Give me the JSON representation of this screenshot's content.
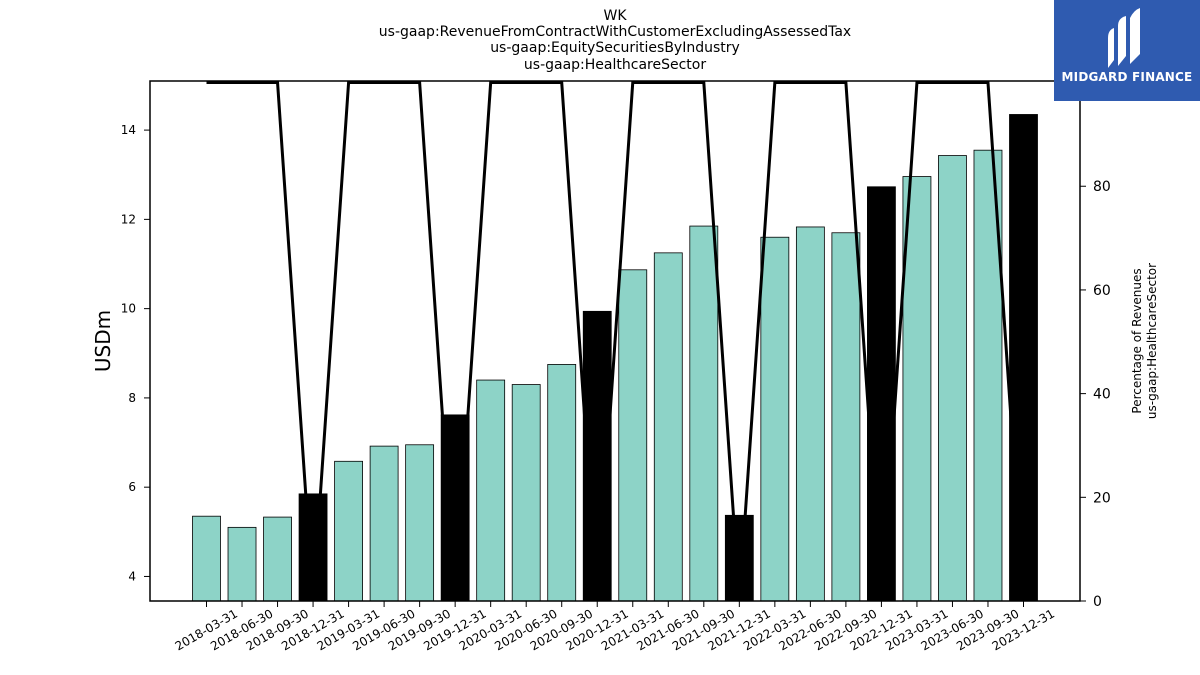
{
  "titles": [
    "WK",
    "us-gaap:RevenueFromContractWithCustomerExcludingAssessedTax",
    "us-gaap:EquitySecuritiesByIndustry",
    "us-gaap:HealthcareSector"
  ],
  "logo": {
    "text": "MIDGARD FINANCE",
    "background": "#2f5bb0"
  },
  "chart_data": {
    "type": "bar",
    "categories": [
      "2018-03-31",
      "2018-06-30",
      "2018-09-30",
      "2018-12-31",
      "2019-03-31",
      "2019-06-30",
      "2019-09-30",
      "2019-12-31",
      "2020-03-31",
      "2020-06-30",
      "2020-09-30",
      "2020-12-31",
      "2021-03-31",
      "2021-06-30",
      "2021-09-30",
      "2021-12-31",
      "2022-03-31",
      "2022-06-30",
      "2022-09-30",
      "2022-12-31",
      "2023-03-31",
      "2023-06-30",
      "2023-09-30",
      "2023-12-31"
    ],
    "series": [
      {
        "type": "bar",
        "axis": "left",
        "values": [
          5.35,
          5.1,
          5.33,
          5.85,
          6.58,
          6.92,
          6.95,
          7.62,
          8.4,
          8.3,
          8.75,
          9.94,
          10.87,
          11.25,
          11.85,
          5.37,
          11.6,
          11.83,
          11.7,
          12.73,
          12.96,
          13.43,
          13.55,
          14.35
        ],
        "colors": [
          "#8dd3c7",
          "#8dd3c7",
          "#8dd3c7",
          "#000000",
          "#8dd3c7",
          "#8dd3c7",
          "#8dd3c7",
          "#000000",
          "#8dd3c7",
          "#8dd3c7",
          "#8dd3c7",
          "#000000",
          "#8dd3c7",
          "#8dd3c7",
          "#8dd3c7",
          "#000000",
          "#8dd3c7",
          "#8dd3c7",
          "#8dd3c7",
          "#000000",
          "#8dd3c7",
          "#8dd3c7",
          "#8dd3c7",
          "#000000"
        ]
      },
      {
        "type": "line",
        "axis": "right",
        "color": "#000000",
        "values": [
          100,
          100,
          100,
          0,
          100,
          100,
          100,
          0,
          100,
          100,
          100,
          0,
          100,
          100,
          100,
          0,
          100,
          100,
          100,
          0,
          100,
          100,
          100,
          0
        ]
      }
    ],
    "ylabel": "USDm",
    "ylabel_right": [
      "Percentage of Revenues",
      "us-gaap:HealthcareSector"
    ],
    "ylim": [
      3.45,
      15.1
    ],
    "ylim_right": [
      0,
      100.3
    ],
    "yticks": [
      4,
      6,
      8,
      10,
      12,
      14
    ],
    "yticks_right": [
      0,
      20,
      40,
      60,
      80,
      100
    ],
    "grid": false,
    "legend": "none"
  }
}
